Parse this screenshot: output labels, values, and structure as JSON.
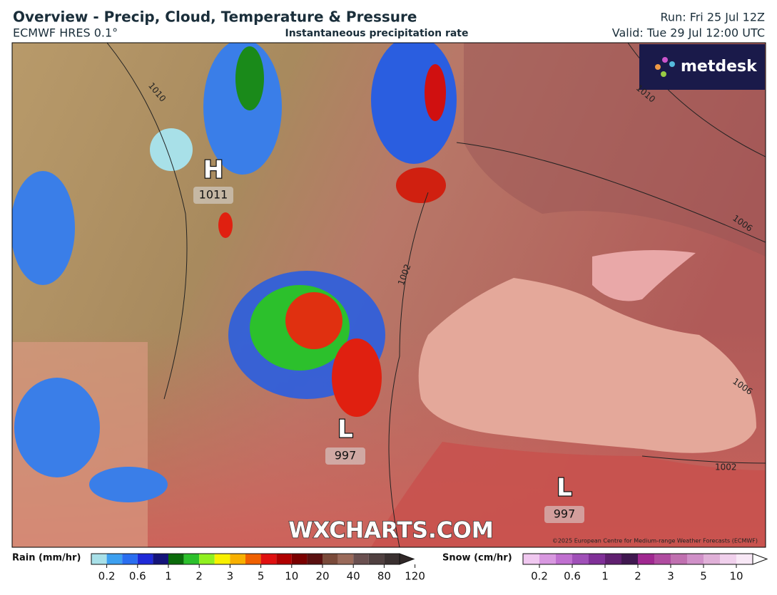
{
  "header": {
    "title": "Overview - Precip, Cloud, Temperature & Pressure",
    "model": "ECMWF HRES 0.1°",
    "field": "Instantaneous precipitation rate",
    "run": "Run: Fri 25 Jul 12Z",
    "valid": "Valid: Tue 29 Jul 12:00 UTC"
  },
  "logo": "metdesk",
  "map": {
    "centers": [
      {
        "letter": "H",
        "pressure": "1011"
      },
      {
        "letter": "L",
        "pressure": "997"
      },
      {
        "letter": "L",
        "pressure": "997"
      }
    ],
    "isobars": [
      "1010",
      "1010",
      "1006",
      "1006",
      "1002",
      "1002"
    ],
    "watermark": "WXCHARTS.COM",
    "copyright": "©2025 European Centre for Medium-range Weather Forecasts (ECMWF)"
  },
  "legend": {
    "rain": {
      "label": "Rain (mm/hr)",
      "ticks": [
        0.2,
        0.6,
        1,
        2,
        3,
        5,
        10,
        20,
        40,
        80,
        120
      ]
    },
    "snow": {
      "label": "Snow (cm/hr)",
      "ticks": [
        0.2,
        0.6,
        1,
        2,
        3,
        5,
        10
      ]
    }
  }
}
